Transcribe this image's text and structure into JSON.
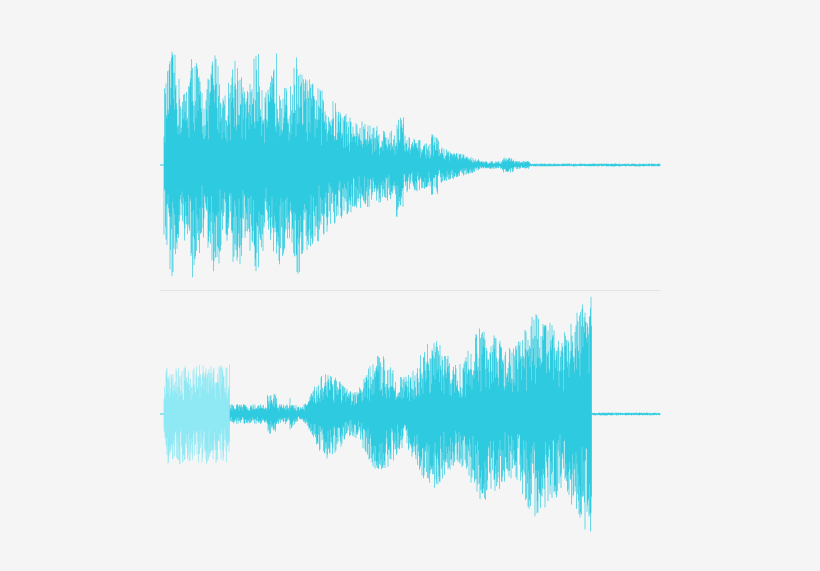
{
  "colors": {
    "background": "#f5f5f5",
    "waveform": "#2ecbe0",
    "waveform_faint": "#8ee9f5",
    "divider": "#e2e2e2"
  },
  "waveforms": [
    {
      "name": "top-waveform",
      "shape": "loud attack decaying to silence"
    },
    {
      "name": "bottom-waveform",
      "shape": "faint start, quiet middle, swelling to a peak, then abrupt cut"
    }
  ]
}
